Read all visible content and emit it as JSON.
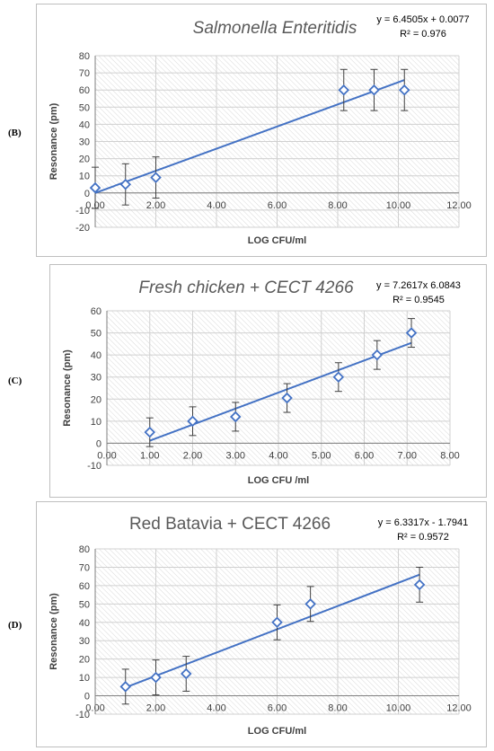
{
  "panels": [
    {
      "label": "(B)"
    },
    {
      "label": "(C)"
    },
    {
      "label": "(D)"
    }
  ],
  "chart_data": [
    {
      "type": "scatter",
      "title": "Salmonella Enteritidis",
      "title_style": "italic",
      "equation": "y = 6.4505x + 0.0077",
      "r_squared": "R² = 0.976",
      "xlabel": "LOG CFU/ml",
      "ylabel": "Resonance (pm)",
      "xlim": [
        0,
        12
      ],
      "ylim": [
        -20,
        80
      ],
      "xticks": [
        "0.00",
        "2.00",
        "4.00",
        "6.00",
        "8.00",
        "10.00",
        "12.00"
      ],
      "yticks": [
        "-20",
        "-10",
        "0",
        "10",
        "20",
        "30",
        "40",
        "50",
        "60",
        "70",
        "80"
      ],
      "points": [
        {
          "x": 0.0,
          "y": 3,
          "err": 12
        },
        {
          "x": 1.0,
          "y": 5,
          "err": 12
        },
        {
          "x": 2.0,
          "y": 9,
          "err": 12
        },
        {
          "x": 8.2,
          "y": 60,
          "err": 12
        },
        {
          "x": 9.2,
          "y": 60,
          "err": 12
        },
        {
          "x": 10.2,
          "y": 60,
          "err": 12
        }
      ],
      "trendline": {
        "slope": 6.4505,
        "intercept": 0.0077,
        "x_range": [
          0,
          10.2
        ]
      },
      "colors": {
        "marker": "#4472c4",
        "line": "#4472c4"
      },
      "grid": "hatched"
    },
    {
      "type": "scatter",
      "title": "Fresh chicken + CECT 4266",
      "title_style": "italic",
      "equation": "y = 7.2617x  6.0843",
      "r_squared": "R² = 0.9545",
      "xlabel": "LOG CFU /ml",
      "ylabel": "Resonance (pm)",
      "xlim": [
        0,
        8
      ],
      "ylim": [
        -10,
        60
      ],
      "xticks": [
        "0.00",
        "1.00",
        "2.00",
        "3.00",
        "4.00",
        "5.00",
        "6.00",
        "7.00",
        "8.00"
      ],
      "yticks": [
        "-10",
        "0",
        "10",
        "20",
        "30",
        "40",
        "50",
        "60"
      ],
      "points": [
        {
          "x": 1.0,
          "y": 5,
          "err": 6.5
        },
        {
          "x": 2.0,
          "y": 10,
          "err": 6.5
        },
        {
          "x": 3.0,
          "y": 12,
          "err": 6.5
        },
        {
          "x": 4.2,
          "y": 20.5,
          "err": 6.5
        },
        {
          "x": 5.4,
          "y": 30,
          "err": 6.5
        },
        {
          "x": 6.3,
          "y": 40,
          "err": 6.5
        },
        {
          "x": 7.1,
          "y": 50,
          "err": 6.5
        }
      ],
      "trendline": {
        "slope": 7.2617,
        "intercept": -6.0843,
        "x_range": [
          1.0,
          7.1
        ]
      },
      "colors": {
        "marker": "#4472c4",
        "line": "#4472c4"
      },
      "grid": "hatched"
    },
    {
      "type": "scatter",
      "title": "Red Batavia + CECT 4266",
      "title_style": "normal",
      "equation": "y = 6.3317x - 1.7941",
      "r_squared": "R² = 0.9572",
      "xlabel": "LOG CFU/ml",
      "ylabel": "Resonance (pm)",
      "xlim": [
        0,
        12
      ],
      "ylim": [
        -10,
        80
      ],
      "xticks": [
        "0.00",
        "2.00",
        "4.00",
        "6.00",
        "8.00",
        "10.00",
        "12.00"
      ],
      "yticks": [
        "-10",
        "0",
        "10",
        "20",
        "30",
        "40",
        "50",
        "60",
        "70",
        "80"
      ],
      "points": [
        {
          "x": 1.0,
          "y": 5,
          "err": 9.5
        },
        {
          "x": 2.0,
          "y": 10,
          "err": 9.5
        },
        {
          "x": 3.0,
          "y": 12,
          "err": 9.5
        },
        {
          "x": 6.0,
          "y": 40,
          "err": 9.5
        },
        {
          "x": 7.1,
          "y": 50,
          "err": 9.5
        },
        {
          "x": 10.7,
          "y": 60.5,
          "err": 9.5
        }
      ],
      "trendline": {
        "slope": 6.3317,
        "intercept": -1.7941,
        "x_range": [
          1.0,
          10.7
        ]
      },
      "colors": {
        "marker": "#4472c4",
        "line": "#4472c4"
      },
      "grid": "hatched"
    }
  ]
}
